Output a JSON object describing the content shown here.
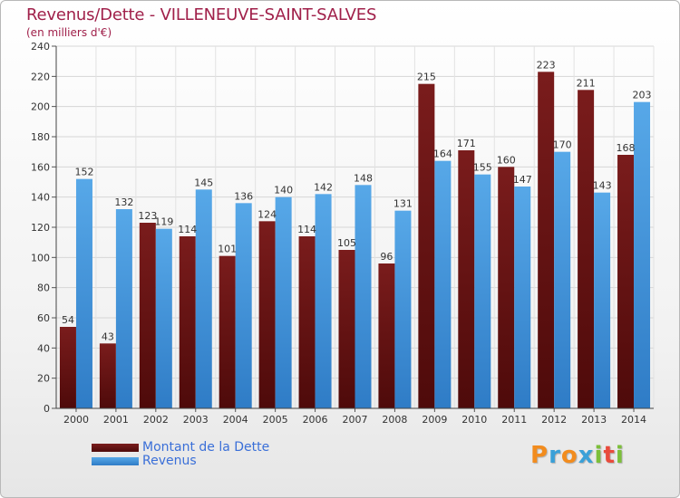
{
  "header": {
    "title": "Revenus/Dette - VILLENEUVE-SAINT-SALVES",
    "subtitle": "(en milliers d'€)"
  },
  "colors": {
    "dette": "#7a1c1c",
    "dette_dark": "#4e0a0a",
    "revenus": "#57a8e8",
    "revenus_dark": "#2f7cc6",
    "title": "#a0204a",
    "legend_text": "#3a6fd8",
    "axis_text": "#333333"
  },
  "chart_data": {
    "type": "bar",
    "title": "Revenus/Dette - VILLENEUVE-SAINT-SALVES",
    "subtitle": "(en milliers d'€)",
    "categories": [
      "2000",
      "2001",
      "2002",
      "2003",
      "2004",
      "2005",
      "2006",
      "2007",
      "2008",
      "2009",
      "2010",
      "2011",
      "2012",
      "2013",
      "2014"
    ],
    "series": [
      {
        "name": "Montant de la Dette",
        "values": [
          54,
          43,
          123,
          114,
          101,
          124,
          114,
          105,
          96,
          215,
          171,
          160,
          223,
          211,
          168
        ]
      },
      {
        "name": "Revenus",
        "values": [
          152,
          132,
          119,
          145,
          136,
          140,
          142,
          148,
          131,
          164,
          155,
          147,
          170,
          143,
          203
        ]
      }
    ],
    "ylim": [
      0,
      240
    ],
    "yticks": [
      0,
      20,
      40,
      60,
      80,
      100,
      120,
      140,
      160,
      180,
      200,
      220,
      240
    ],
    "grid": true,
    "legend_position": "bottom-left"
  },
  "legend": {
    "items": [
      {
        "label": "Montant de la Dette"
      },
      {
        "label": "Revenus"
      }
    ]
  },
  "logo": {
    "letters": [
      "P",
      "r",
      "o",
      "x",
      "i",
      "t",
      "i"
    ],
    "colors": [
      "#f28c1e",
      "#3aa0d8",
      "#f28c1e",
      "#3aa0d8",
      "#7cbf3a",
      "#e94b3c",
      "#7cbf3a"
    ]
  }
}
